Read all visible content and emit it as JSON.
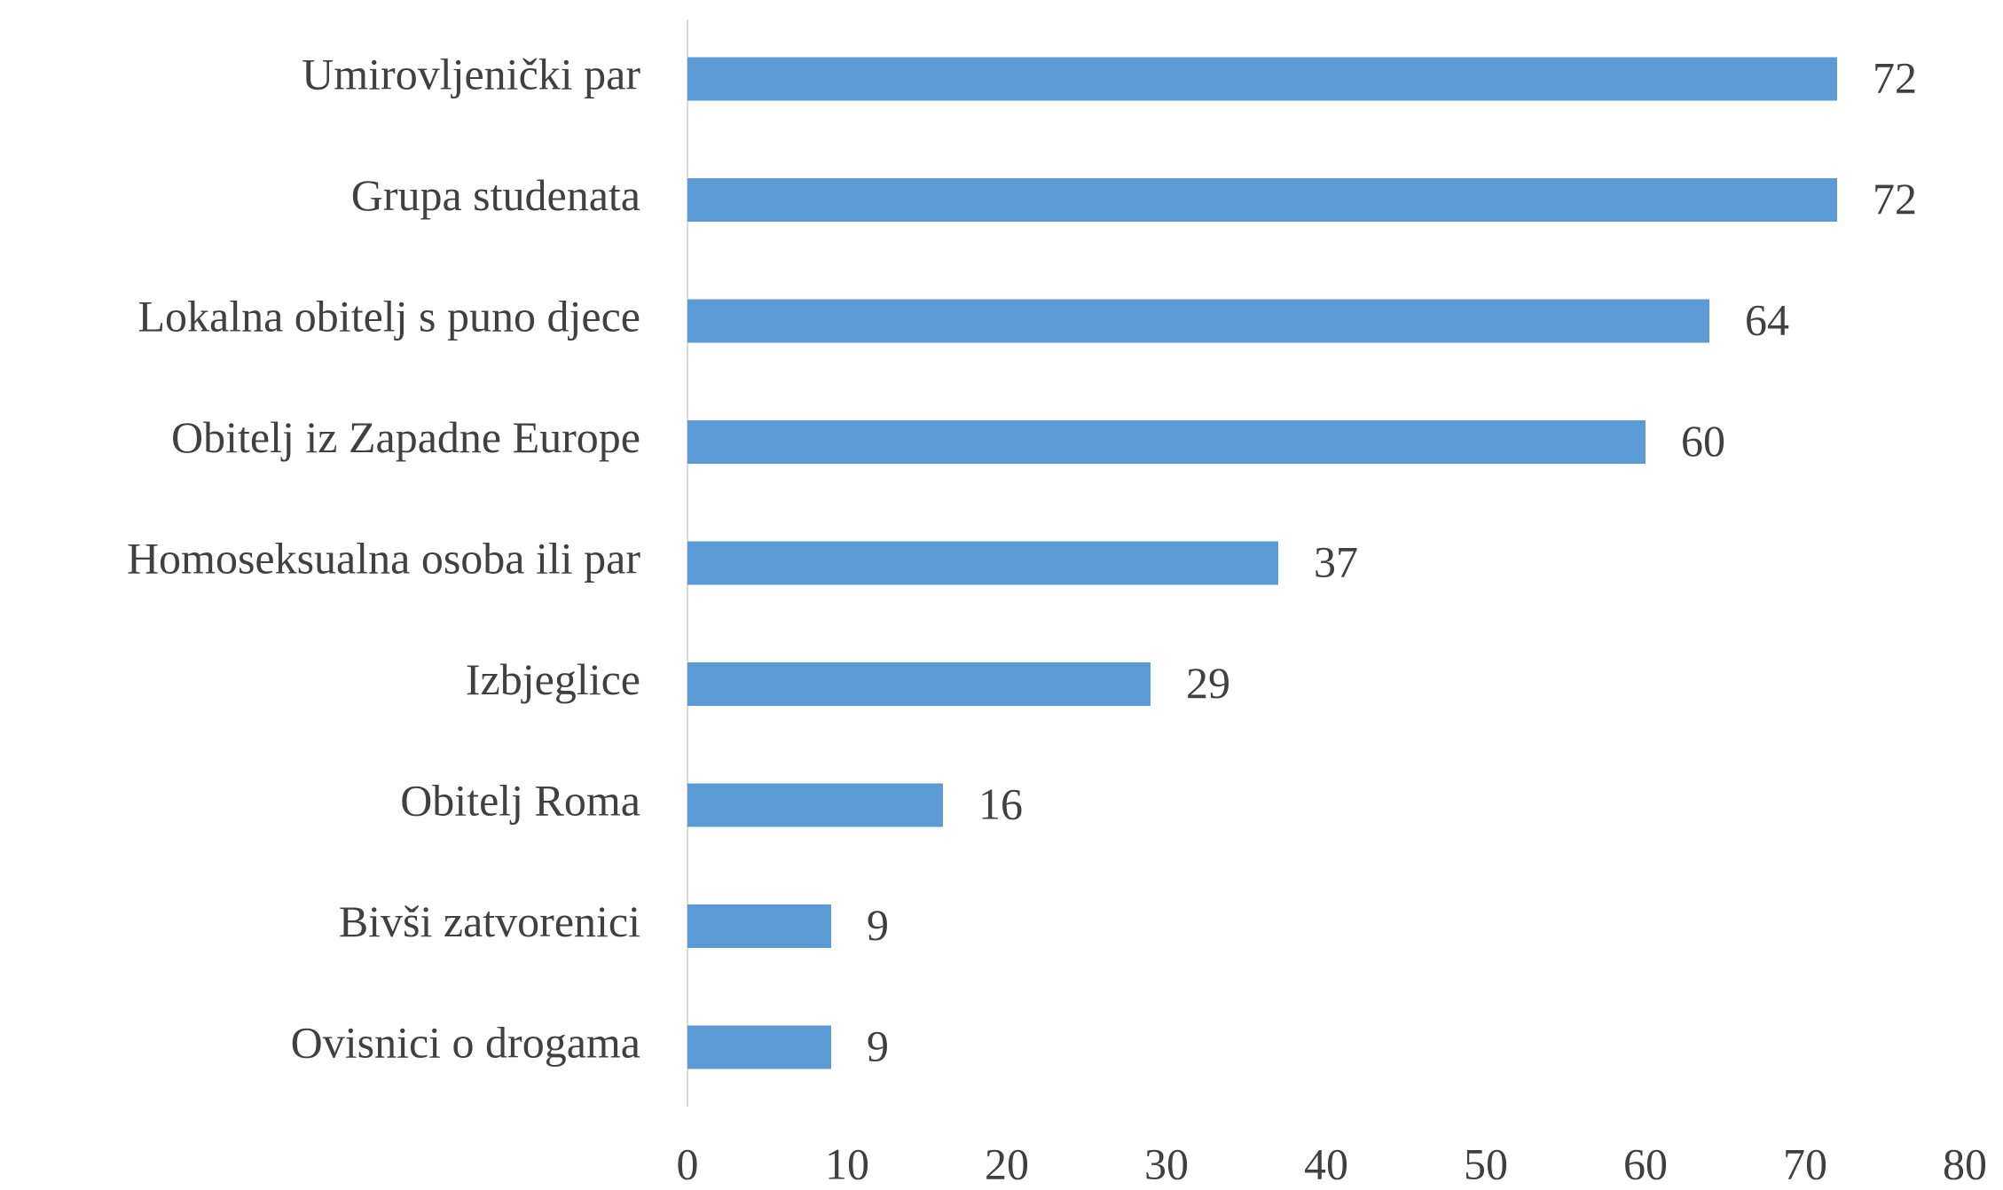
{
  "chart_data": {
    "type": "barh",
    "categories": [
      "Umirovljenički par",
      "Grupa studenata",
      "Lokalna obitelj s puno djece",
      "Obitelj iz Zapadne Europe",
      "Homoseksualna osoba ili par",
      "Izbjeglice",
      "Obitelj Roma",
      "Bivši zatvorenici",
      "Ovisnici o drogama"
    ],
    "values": [
      72,
      72,
      64,
      60,
      37,
      29,
      16,
      9,
      9
    ],
    "color": "#5b9bd5",
    "xlim": [
      0,
      80
    ],
    "xticks": [
      0,
      10,
      20,
      30,
      40,
      50,
      60,
      70,
      80
    ],
    "grid": false
  }
}
